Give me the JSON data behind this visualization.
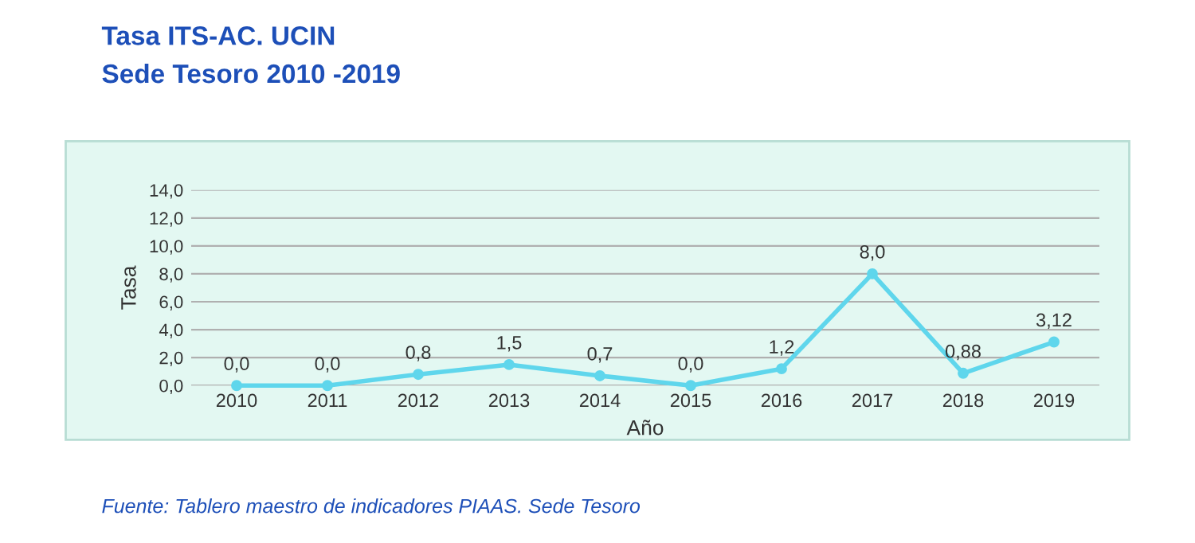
{
  "chart_data": {
    "type": "line",
    "title": "Tasa ITS-AC. UCIN",
    "subtitle": "Sede Tesoro 2010 -2019",
    "xlabel": "Año",
    "ylabel": "Tasa",
    "categories": [
      "2010",
      "2011",
      "2012",
      "2013",
      "2014",
      "2015",
      "2016",
      "2017",
      "2018",
      "2019"
    ],
    "series": [
      {
        "color": "#5fd6ec",
        "values": [
          0.0,
          0.0,
          0.8,
          1.5,
          0.7,
          0.0,
          1.2,
          8.0,
          0.88,
          3.12
        ],
        "value_labels": [
          "0,0",
          "0,0",
          "0,8",
          "1,5",
          "0,7",
          "0,0",
          "1,2",
          "8,0",
          "0,88",
          "3,12"
        ]
      }
    ],
    "ylim": [
      0,
      14
    ],
    "yticks": [
      {
        "value": 0,
        "label": "0,0"
      },
      {
        "value": 2,
        "label": "2,0"
      },
      {
        "value": 4,
        "label": "4,0"
      },
      {
        "value": 6,
        "label": "6,0"
      },
      {
        "value": 8,
        "label": "8,0"
      },
      {
        "value": 10,
        "label": "10,0"
      },
      {
        "value": 12,
        "label": "12,0"
      },
      {
        "value": 14,
        "label": "14,0"
      }
    ],
    "grid": "y",
    "marker": "circle",
    "line_style": "solid",
    "legend": false,
    "annotations": [
      "Fuente: Tablero maestro de indicadores PIAAS. Sede Tesoro"
    ]
  }
}
